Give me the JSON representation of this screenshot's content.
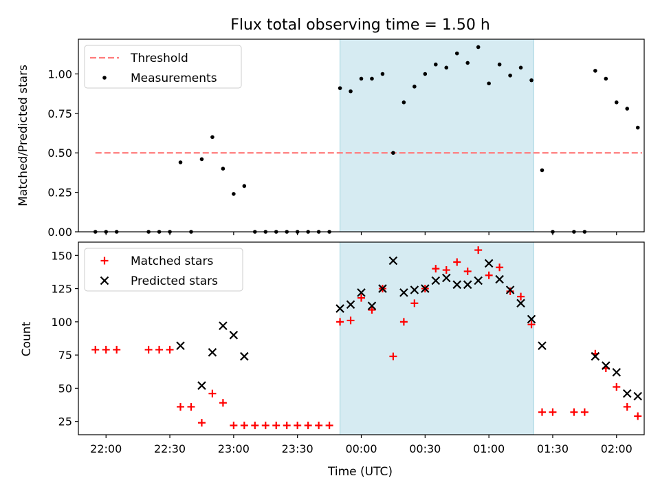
{
  "figure": {
    "title": "Flux total observing time = 1.50 h"
  },
  "chart_data": [
    {
      "type": "scatter",
      "panel": "top",
      "title": "Flux total observing time = 1.50 h",
      "ylabel": "Matched/Predicted stars",
      "xlabel": "",
      "ylim": [
        0,
        1.22
      ],
      "yticks": [
        "0.00",
        "0.25",
        "0.50",
        "0.75",
        "1.00"
      ],
      "ytick_values": [
        0,
        0.25,
        0.5,
        0.75,
        1.0
      ],
      "grid": false,
      "legend": {
        "position": "upper-left",
        "entries": [
          "Threshold",
          "Measurements"
        ]
      },
      "shaded_interval": [
        "23:50",
        "01:21"
      ],
      "threshold": {
        "name": "Threshold",
        "value": 0.5,
        "x_range": [
          "21:55",
          "02:12"
        ],
        "color": "#ff7b7b"
      },
      "series": [
        {
          "name": "Measurements",
          "color": "#000000",
          "points": [
            [
              "21:55",
              0.0
            ],
            [
              "22:00",
              0.0
            ],
            [
              "22:05",
              0.0
            ],
            [
              "22:20",
              0.0
            ],
            [
              "22:25",
              0.0
            ],
            [
              "22:30",
              0.0
            ],
            [
              "22:35",
              0.44
            ],
            [
              "22:40",
              0.0
            ],
            [
              "22:45",
              0.46
            ],
            [
              "22:50",
              0.6
            ],
            [
              "22:55",
              0.4
            ],
            [
              "23:00",
              0.24
            ],
            [
              "23:05",
              0.29
            ],
            [
              "23:10",
              0.0
            ],
            [
              "23:15",
              0.0
            ],
            [
              "23:20",
              0.0
            ],
            [
              "23:25",
              0.0
            ],
            [
              "23:30",
              0.0
            ],
            [
              "23:35",
              0.0
            ],
            [
              "23:40",
              0.0
            ],
            [
              "23:45",
              0.0
            ],
            [
              "23:50",
              0.91
            ],
            [
              "23:55",
              0.89
            ],
            [
              "00:00",
              0.97
            ],
            [
              "00:05",
              0.97
            ],
            [
              "00:10",
              1.0
            ],
            [
              "00:15",
              0.5
            ],
            [
              "00:20",
              0.82
            ],
            [
              "00:25",
              0.92
            ],
            [
              "00:30",
              1.0
            ],
            [
              "00:35",
              1.06
            ],
            [
              "00:40",
              1.04
            ],
            [
              "00:45",
              1.13
            ],
            [
              "00:50",
              1.07
            ],
            [
              "00:55",
              1.17
            ],
            [
              "01:00",
              0.94
            ],
            [
              "01:05",
              1.06
            ],
            [
              "01:10",
              0.99
            ],
            [
              "01:15",
              1.04
            ],
            [
              "01:20",
              0.96
            ],
            [
              "01:25",
              0.39
            ],
            [
              "01:30",
              0.0
            ],
            [
              "01:40",
              0.0
            ],
            [
              "01:45",
              0.0
            ],
            [
              "01:50",
              1.02
            ],
            [
              "01:55",
              0.97
            ],
            [
              "02:00",
              0.82
            ],
            [
              "02:05",
              0.78
            ],
            [
              "02:10",
              0.66
            ]
          ]
        }
      ]
    },
    {
      "type": "scatter",
      "panel": "bottom",
      "xlabel": "Time (UTC)",
      "ylabel": "Count",
      "ylim": [
        15,
        160
      ],
      "yticks": [
        "25",
        "50",
        "75",
        "100",
        "125",
        "150"
      ],
      "ytick_values": [
        25,
        50,
        75,
        100,
        125,
        150
      ],
      "xticks": [
        "22:00",
        "22:30",
        "23:00",
        "23:30",
        "00:00",
        "00:30",
        "01:00",
        "01:30",
        "02:00"
      ],
      "xlim": [
        "21:47",
        "02:13"
      ],
      "grid": false,
      "legend": {
        "position": "upper-left",
        "entries": [
          "Matched stars",
          "Predicted stars"
        ]
      },
      "shaded_interval": [
        "23:50",
        "01:21"
      ],
      "series": [
        {
          "name": "Matched stars",
          "marker": "plus",
          "color": "#ff0000",
          "points": [
            [
              "21:55",
              79
            ],
            [
              "22:00",
              79
            ],
            [
              "22:05",
              79
            ],
            [
              "22:20",
              79
            ],
            [
              "22:25",
              79
            ],
            [
              "22:30",
              79
            ],
            [
              "22:35",
              36
            ],
            [
              "22:40",
              36
            ],
            [
              "22:45",
              24
            ],
            [
              "22:50",
              46
            ],
            [
              "22:55",
              39
            ],
            [
              "23:00",
              22
            ],
            [
              "23:05",
              22
            ],
            [
              "23:10",
              22
            ],
            [
              "23:15",
              22
            ],
            [
              "23:20",
              22
            ],
            [
              "23:25",
              22
            ],
            [
              "23:30",
              22
            ],
            [
              "23:35",
              22
            ],
            [
              "23:40",
              22
            ],
            [
              "23:45",
              22
            ],
            [
              "23:50",
              100
            ],
            [
              "23:55",
              101
            ],
            [
              "00:00",
              118
            ],
            [
              "00:05",
              109
            ],
            [
              "00:10",
              125
            ],
            [
              "00:15",
              74
            ],
            [
              "00:20",
              100
            ],
            [
              "00:25",
              114
            ],
            [
              "00:30",
              125
            ],
            [
              "00:35",
              140
            ],
            [
              "00:40",
              139
            ],
            [
              "00:45",
              145
            ],
            [
              "00:50",
              138
            ],
            [
              "00:55",
              154
            ],
            [
              "01:00",
              135
            ],
            [
              "01:05",
              141
            ],
            [
              "01:10",
              123
            ],
            [
              "01:15",
              119
            ],
            [
              "01:20",
              98
            ],
            [
              "01:25",
              32
            ],
            [
              "01:30",
              32
            ],
            [
              "01:40",
              32
            ],
            [
              "01:45",
              32
            ],
            [
              "01:50",
              76
            ],
            [
              "01:55",
              65
            ],
            [
              "02:00",
              51
            ],
            [
              "02:05",
              36
            ],
            [
              "02:10",
              29
            ]
          ]
        },
        {
          "name": "Predicted stars",
          "marker": "x",
          "color": "#000000",
          "points": [
            [
              "22:35",
              82
            ],
            [
              "22:45",
              52
            ],
            [
              "22:50",
              77
            ],
            [
              "22:55",
              97
            ],
            [
              "23:00",
              90
            ],
            [
              "23:05",
              74
            ],
            [
              "23:50",
              110
            ],
            [
              "23:55",
              113
            ],
            [
              "00:00",
              122
            ],
            [
              "00:05",
              112
            ],
            [
              "00:10",
              125
            ],
            [
              "00:15",
              146
            ],
            [
              "00:20",
              122
            ],
            [
              "00:25",
              124
            ],
            [
              "00:30",
              125
            ],
            [
              "00:35",
              131
            ],
            [
              "00:40",
              133
            ],
            [
              "00:45",
              128
            ],
            [
              "00:50",
              128
            ],
            [
              "00:55",
              131
            ],
            [
              "01:00",
              144
            ],
            [
              "01:05",
              132
            ],
            [
              "01:10",
              124
            ],
            [
              "01:15",
              114
            ],
            [
              "01:20",
              102
            ],
            [
              "01:25",
              82
            ],
            [
              "01:50",
              74
            ],
            [
              "01:55",
              67
            ],
            [
              "02:00",
              62
            ],
            [
              "02:05",
              46
            ],
            [
              "02:10",
              44
            ]
          ]
        }
      ]
    }
  ]
}
